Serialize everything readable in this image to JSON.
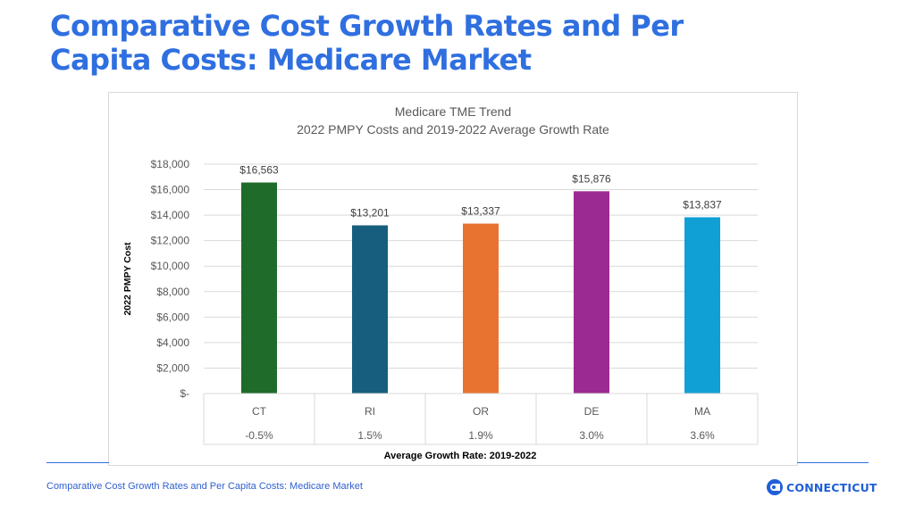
{
  "slide": {
    "title": "Comparative Cost Growth Rates and Per Capita Costs: Medicare Market",
    "footer": "Comparative Cost Growth Rates and Per Capita Costs: Medicare Market",
    "logo_text": "CONNECTICUT"
  },
  "colors": {
    "accent": "#2f6fe0"
  },
  "chart_data": {
    "type": "bar",
    "title": "Medicare TME Trend",
    "subtitle": "2022 PMPY Costs and 2019-2022 Average Growth Rate",
    "ylabel": "2022 PMPY Cost",
    "xlabel": "Average Growth Rate: 2019-2022",
    "ylim": [
      0,
      18000
    ],
    "y_ticks": [
      0,
      2000,
      4000,
      6000,
      8000,
      10000,
      12000,
      14000,
      16000,
      18000
    ],
    "y_tick_labels": [
      "$-",
      "$2,000",
      "$4,000",
      "$6,000",
      "$8,000",
      "$10,000",
      "$12,000",
      "$14,000",
      "$16,000",
      "$18,000"
    ],
    "categories": [
      "CT",
      "RI",
      "OR",
      "DE",
      "MA"
    ],
    "values": [
      16563,
      13201,
      13337,
      15876,
      13837
    ],
    "value_labels": [
      "$16,563",
      "$13,201",
      "$13,337",
      "$15,876",
      "$13,837"
    ],
    "growth_rates": [
      "-0.5%",
      "1.5%",
      "1.9%",
      "3.0%",
      "3.6%"
    ],
    "bar_colors": [
      "#1e6b2a",
      "#175e7e",
      "#e87330",
      "#9b2a92",
      "#11a0d6"
    ],
    "grid": true
  }
}
